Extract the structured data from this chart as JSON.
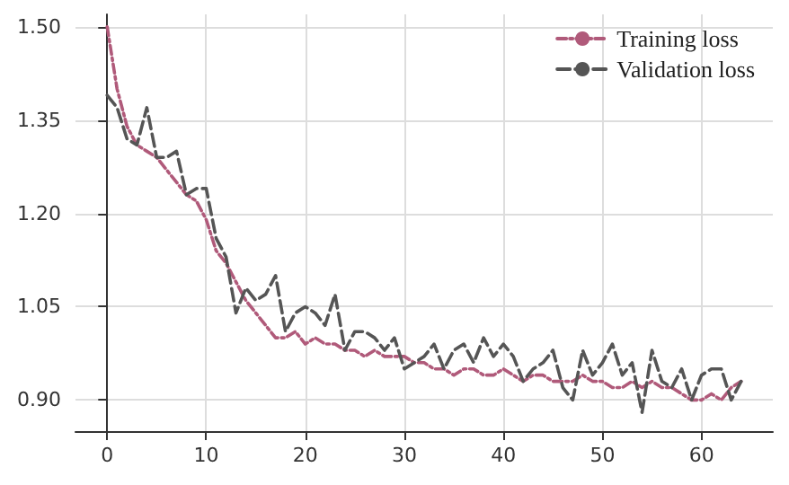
{
  "chart_data": {
    "type": "line",
    "x": [
      0,
      1,
      2,
      3,
      4,
      5,
      6,
      7,
      8,
      9,
      10,
      11,
      12,
      13,
      14,
      15,
      16,
      17,
      18,
      19,
      20,
      21,
      22,
      23,
      24,
      25,
      26,
      27,
      28,
      29,
      30,
      31,
      32,
      33,
      34,
      35,
      36,
      37,
      38,
      39,
      40,
      41,
      42,
      43,
      44,
      45,
      46,
      47,
      48,
      49,
      50,
      51,
      52,
      53,
      54,
      55,
      56,
      57,
      58,
      59,
      60,
      61,
      62,
      63,
      64
    ],
    "series": [
      {
        "name": "Training loss",
        "color": "#b05a7a",
        "line_style": "dashdot",
        "values": [
          1.5,
          1.4,
          1.34,
          1.31,
          1.3,
          1.29,
          1.27,
          1.25,
          1.23,
          1.22,
          1.19,
          1.14,
          1.12,
          1.09,
          1.06,
          1.04,
          1.02,
          1.0,
          1.0,
          1.01,
          0.99,
          1.0,
          0.99,
          0.99,
          0.98,
          0.98,
          0.97,
          0.98,
          0.97,
          0.97,
          0.97,
          0.96,
          0.96,
          0.95,
          0.95,
          0.94,
          0.95,
          0.95,
          0.94,
          0.94,
          0.95,
          0.94,
          0.93,
          0.94,
          0.94,
          0.93,
          0.93,
          0.93,
          0.94,
          0.93,
          0.93,
          0.92,
          0.92,
          0.93,
          0.92,
          0.93,
          0.92,
          0.92,
          0.91,
          0.9,
          0.9,
          0.91,
          0.9,
          0.92,
          0.93
        ]
      },
      {
        "name": "Validation loss",
        "color": "#555555",
        "line_style": "dashed",
        "values": [
          1.39,
          1.37,
          1.32,
          1.31,
          1.37,
          1.29,
          1.29,
          1.3,
          1.23,
          1.24,
          1.24,
          1.16,
          1.13,
          1.04,
          1.08,
          1.06,
          1.07,
          1.1,
          1.01,
          1.04,
          1.05,
          1.04,
          1.02,
          1.07,
          0.98,
          1.01,
          1.01,
          1.0,
          0.98,
          1.0,
          0.95,
          0.96,
          0.97,
          0.99,
          0.95,
          0.98,
          0.99,
          0.96,
          1.0,
          0.97,
          0.99,
          0.97,
          0.93,
          0.95,
          0.96,
          0.98,
          0.92,
          0.9,
          0.98,
          0.94,
          0.96,
          0.99,
          0.94,
          0.96,
          0.88,
          0.98,
          0.93,
          0.92,
          0.95,
          0.9,
          0.94,
          0.95,
          0.95,
          0.9,
          0.93
        ]
      }
    ],
    "xlim": [
      -3.2,
      67.2
    ],
    "xticks": [
      0,
      10,
      20,
      30,
      40,
      50,
      60
    ],
    "ylim": [
      0.85,
      1.52
    ],
    "yticks": [
      {
        "value": 0.9,
        "label": "0.90"
      },
      {
        "value": 1.05,
        "label": "1.05"
      },
      {
        "value": 1.2,
        "label": "1.20"
      },
      {
        "value": 1.35,
        "label": "1.35"
      },
      {
        "value": 1.5,
        "label": "1.50"
      }
    ],
    "grid": true,
    "legend": "top right",
    "marker": "none"
  }
}
